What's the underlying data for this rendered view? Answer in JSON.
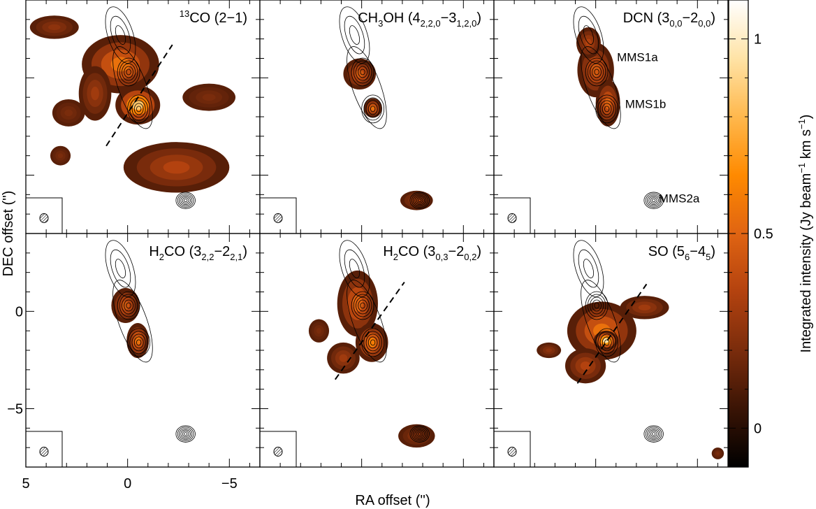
{
  "chart_data": {
    "type": "heatmap",
    "layout": {
      "rows": 2,
      "cols": 3
    },
    "xlabel": "RA offset ('')",
    "ylabel": "DEC offset ('')",
    "x_range": [
      5,
      -6.5
    ],
    "y_range": [
      -8,
      4
    ],
    "x_ticks": [
      {
        "value": 5,
        "label": "5"
      },
      {
        "value": 0,
        "label": "0"
      },
      {
        "value": -5,
        "label": "−5"
      }
    ],
    "y_ticks": [
      {
        "value": 0,
        "label": "0"
      },
      {
        "value": -5,
        "label": "−5"
      }
    ],
    "colorbar": {
      "label_main": "Integrated intensity (Jy beam",
      "label_exp1": "−1",
      "label_mid": " km s",
      "label_exp2": "−1",
      "label_end": ")",
      "range": [
        -0.1,
        1.1
      ],
      "ticks": [
        {
          "value": 1,
          "label": "1"
        },
        {
          "value": 0.5,
          "label": "0.5"
        },
        {
          "value": 0,
          "label": "0"
        }
      ],
      "colormap": [
        "#000000",
        "#3a1405",
        "#7a2c0c",
        "#b3420f",
        "#e06412",
        "#ff8a00",
        "#ffb84d",
        "#ffe3a6",
        "#ffffff"
      ]
    },
    "sources": [
      {
        "name": "MMS1a",
        "x": -0.05,
        "y": 0.3
      },
      {
        "name": "MMS1b",
        "x": -0.55,
        "y": -1.6
      },
      {
        "name": "MMS2a",
        "x": -2.85,
        "y": -6.3
      }
    ],
    "panels": [
      {
        "title_base": "",
        "title_sup": "13",
        "title_tail": "CO (2−1)",
        "labels": [],
        "outflow_line": {
          "x1": 1.05,
          "y1": -3.5,
          "x2": -2.2,
          "y2": 1.7
        },
        "emission": [
          {
            "x": 0.35,
            "y": 0.7,
            "rx": 1.9,
            "ry": 1.5,
            "peak": 0.55
          },
          {
            "x": -0.5,
            "y": -1.4,
            "rx": 1.1,
            "ry": 1.0,
            "peak": 0.85
          },
          {
            "x": 1.6,
            "y": -0.8,
            "rx": 0.8,
            "ry": 1.4,
            "peak": 0.3
          },
          {
            "x": -2.4,
            "y": -4.6,
            "rx": 2.6,
            "ry": 1.3,
            "peak": 0.35
          },
          {
            "x": 3.6,
            "y": 2.6,
            "rx": 1.2,
            "ry": 0.6,
            "peak": 0.25
          },
          {
            "x": 2.9,
            "y": -1.8,
            "rx": 0.8,
            "ry": 0.7,
            "peak": 0.2
          },
          {
            "x": -4.0,
            "y": -1.0,
            "rx": 1.3,
            "ry": 0.7,
            "peak": 0.2
          },
          {
            "x": 3.3,
            "y": -4.0,
            "rx": 0.5,
            "ry": 0.5,
            "peak": 0.2
          }
        ]
      },
      {
        "title_base": "CH",
        "title_sub1": "3",
        "title_mid": "OH (4",
        "title_sub2": "2,2,0",
        "title_dash": "−3",
        "title_sub3": "1,2,0",
        "title_end": ")",
        "labels": [],
        "outflow_line": null,
        "emission": [
          {
            "x": 0.1,
            "y": 0.2,
            "rx": 0.8,
            "ry": 0.8,
            "peak": 0.45
          },
          {
            "x": -0.55,
            "y": -1.55,
            "rx": 0.45,
            "ry": 0.5,
            "peak": 0.55
          },
          {
            "x": -2.7,
            "y": -6.3,
            "rx": 0.8,
            "ry": 0.5,
            "peak": 0.3
          }
        ]
      },
      {
        "title_base": "DCN (3",
        "title_sub1": "0,0",
        "title_mid": "−2",
        "title_sub2": "0,0",
        "title_end": ")",
        "labels": [
          "MMS1a",
          "MMS1b",
          "MMS2a"
        ],
        "outflow_line": null,
        "emission": [
          {
            "x": 0.0,
            "y": 0.4,
            "rx": 0.9,
            "ry": 1.4,
            "peak": 0.45
          },
          {
            "x": 0.35,
            "y": 1.8,
            "rx": 0.6,
            "ry": 0.8,
            "peak": 0.35
          },
          {
            "x": -0.6,
            "y": -1.3,
            "rx": 0.6,
            "ry": 1.2,
            "peak": 0.5
          }
        ]
      },
      {
        "title_base": "H",
        "title_sub1": "2",
        "title_mid": "CO (3",
        "title_sub2": "2,2",
        "title_dash": "−2",
        "title_sub3": "2,1",
        "title_end": ")",
        "labels": [],
        "outflow_line": null,
        "emission": [
          {
            "x": 0.1,
            "y": 0.3,
            "rx": 0.7,
            "ry": 0.9,
            "peak": 0.45
          },
          {
            "x": -0.5,
            "y": -1.5,
            "rx": 0.55,
            "ry": 0.9,
            "peak": 0.55
          }
        ]
      },
      {
        "title_base": "H",
        "title_sub1": "2",
        "title_mid": "CO (3",
        "title_sub2": "0,3",
        "title_dash": "−2",
        "title_sub3": "0,2",
        "title_end": ")",
        "labels": [],
        "outflow_line": {
          "x1": 1.3,
          "y1": -3.5,
          "x2": -2.1,
          "y2": 1.5
        },
        "emission": [
          {
            "x": 0.2,
            "y": 0.4,
            "rx": 1.0,
            "ry": 1.7,
            "peak": 0.5
          },
          {
            "x": -0.5,
            "y": -1.6,
            "rx": 0.8,
            "ry": 1.0,
            "peak": 0.6
          },
          {
            "x": 0.9,
            "y": -2.4,
            "rx": 0.8,
            "ry": 0.8,
            "peak": 0.3
          },
          {
            "x": 2.1,
            "y": -1.0,
            "rx": 0.5,
            "ry": 0.6,
            "peak": 0.2
          },
          {
            "x": -2.7,
            "y": -6.4,
            "rx": 0.9,
            "ry": 0.6,
            "peak": 0.25
          }
        ]
      },
      {
        "title_base": "SO (5",
        "title_sub1": "6",
        "title_mid": "−4",
        "title_sub2": "5",
        "title_end": ")",
        "labels": [],
        "outflow_line": {
          "x1": 0.9,
          "y1": -3.7,
          "x2": -2.5,
          "y2": 1.4
        },
        "emission": [
          {
            "x": -0.3,
            "y": -1.0,
            "rx": 1.7,
            "ry": 1.5,
            "peak": 0.55
          },
          {
            "x": -0.5,
            "y": -1.5,
            "rx": 0.6,
            "ry": 0.5,
            "peak": 0.95
          },
          {
            "x": 0.5,
            "y": -2.8,
            "rx": 1.0,
            "ry": 0.9,
            "peak": 0.35
          },
          {
            "x": -2.4,
            "y": 0.2,
            "rx": 1.2,
            "ry": 0.6,
            "peak": 0.3
          },
          {
            "x": 2.3,
            "y": -2.0,
            "rx": 0.6,
            "ry": 0.4,
            "peak": 0.25
          },
          {
            "x": -6.0,
            "y": -7.3,
            "rx": 0.3,
            "ry": 0.3,
            "peak": 0.2
          }
        ]
      }
    ]
  }
}
